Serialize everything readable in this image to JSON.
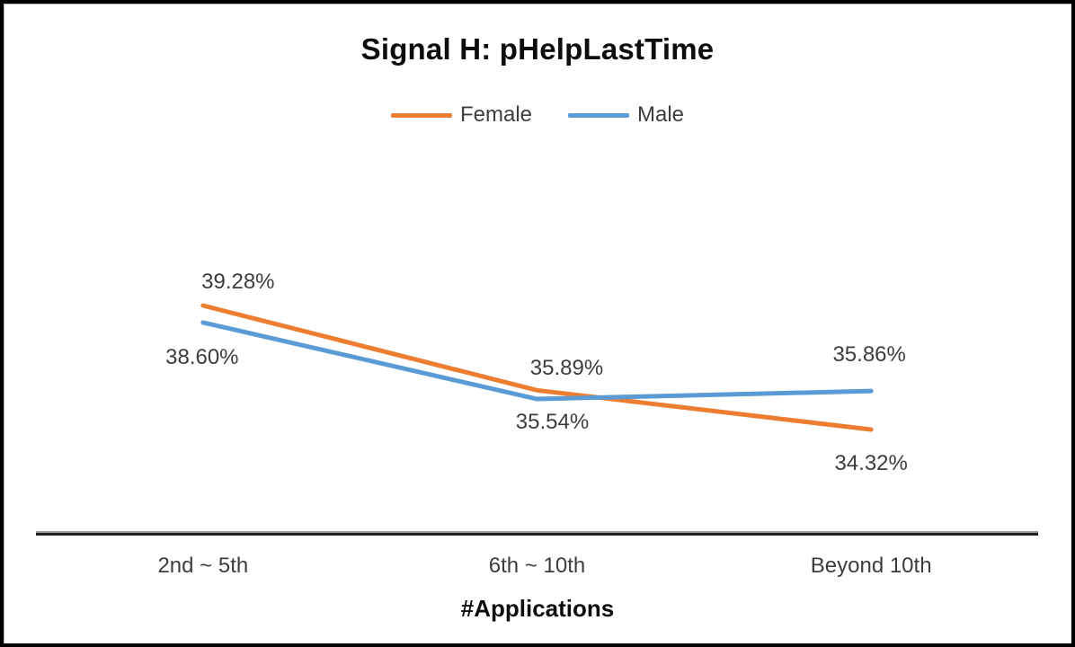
{
  "chart_data": {
    "type": "line",
    "title": "Signal H: pHelpLastTime",
    "xlabel": "#Applications",
    "categories": [
      "2nd ~ 5th",
      "6th ~ 10th",
      "Beyond 10th"
    ],
    "series": [
      {
        "name": "Female",
        "color": "#ED7D31",
        "values": [
          39.28,
          35.89,
          34.32
        ],
        "labels": [
          "39.28%",
          "35.89%",
          "34.32%"
        ],
        "label_offsets": [
          {
            "dx": 39,
            "dy": -26
          },
          {
            "dx": 33,
            "dy": -24
          },
          {
            "dx": 0,
            "dy": 38
          }
        ]
      },
      {
        "name": "Male",
        "color": "#5B9BD5",
        "values": [
          38.6,
          35.54,
          35.86
        ],
        "labels": [
          "38.60%",
          "35.54%",
          "35.86%"
        ],
        "label_offsets": [
          {
            "dx": -1,
            "dy": 39
          },
          {
            "dx": 17,
            "dy": 26
          },
          {
            "dx": -2,
            "dy": -40
          }
        ]
      }
    ],
    "legend_position": "top",
    "grid": false,
    "y_axis_visible": false,
    "ylim": [
      34.32,
      39.28
    ]
  }
}
